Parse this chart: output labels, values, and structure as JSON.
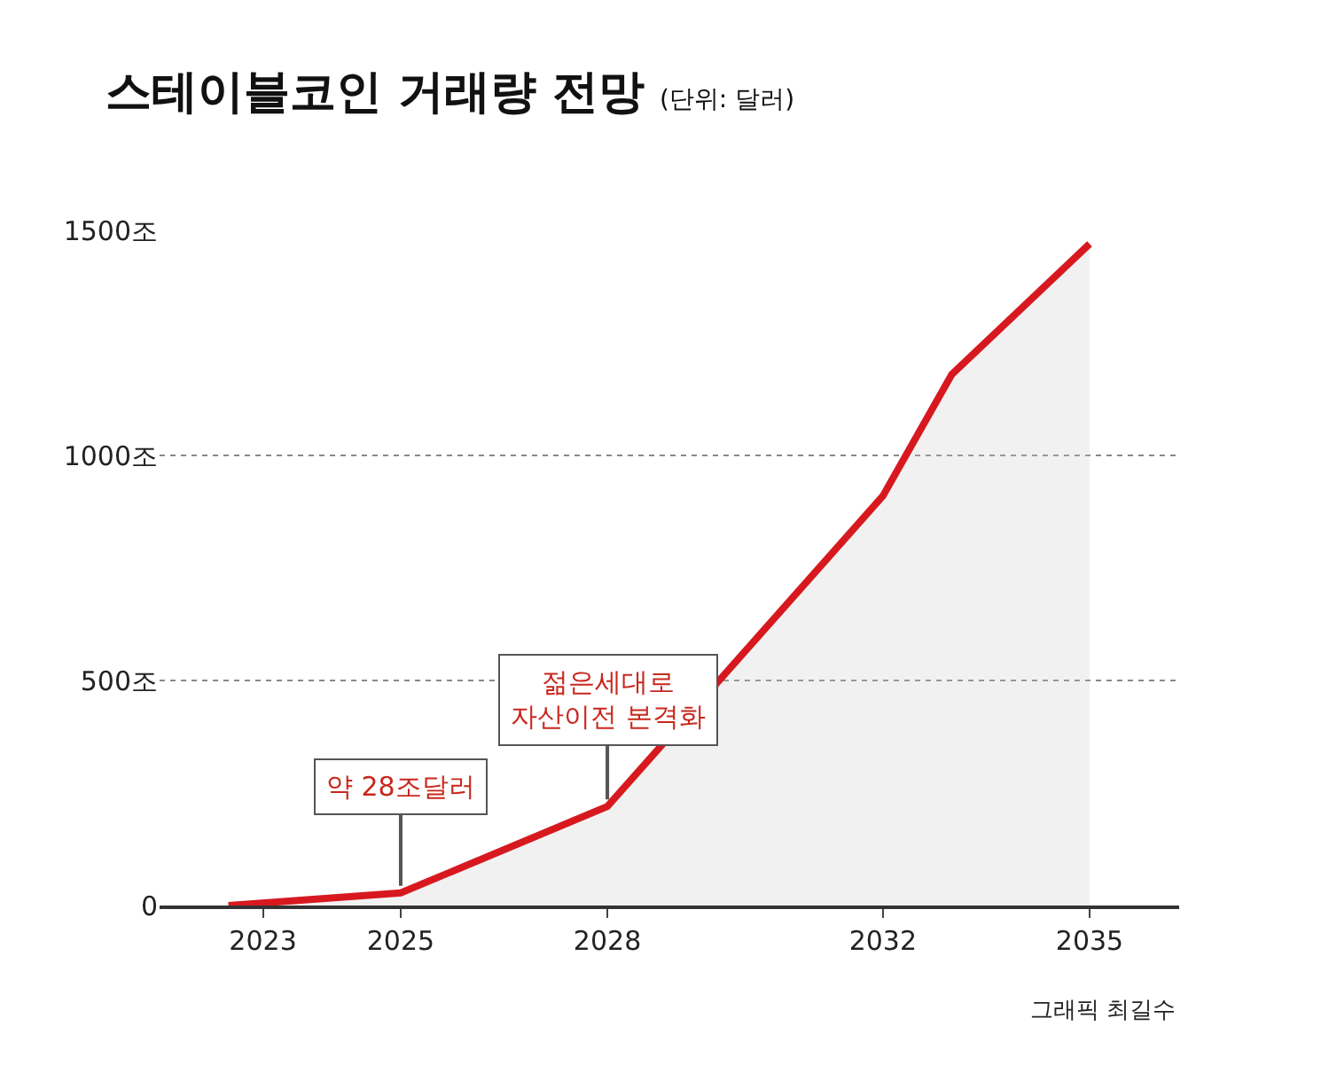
{
  "chart_data": {
    "type": "area",
    "title": "스테이블코인 거래량 전망",
    "subtitle": "(단위: 달러)",
    "x": [
      2022.5,
      2025,
      2028,
      2032,
      2033,
      2035
    ],
    "series": [
      {
        "color": "#d7191f",
        "values": [
          0,
          28,
          220,
          910,
          1180,
          1470
        ]
      }
    ],
    "xlim": [
      2021.5,
      2036.3
    ],
    "xticks": [
      2023,
      2025,
      2028,
      2032,
      2035
    ],
    "ylim": [
      0,
      1500
    ],
    "yticks": [
      {
        "value": 0,
        "label": "0"
      },
      {
        "value": 500,
        "label": "500조"
      },
      {
        "value": 1000,
        "label": "1000조"
      },
      {
        "value": 1500,
        "label": "1500조"
      }
    ],
    "grid": "y",
    "marker": "none",
    "line_style": "solid",
    "annotations": [
      {
        "text": "약 28조달러",
        "x": 2025,
        "y": 28
      },
      {
        "text": "젊은세대로\n자산이전 본격화",
        "x": 2028,
        "y": 220
      },
      "그래픽 최길수"
    ]
  }
}
